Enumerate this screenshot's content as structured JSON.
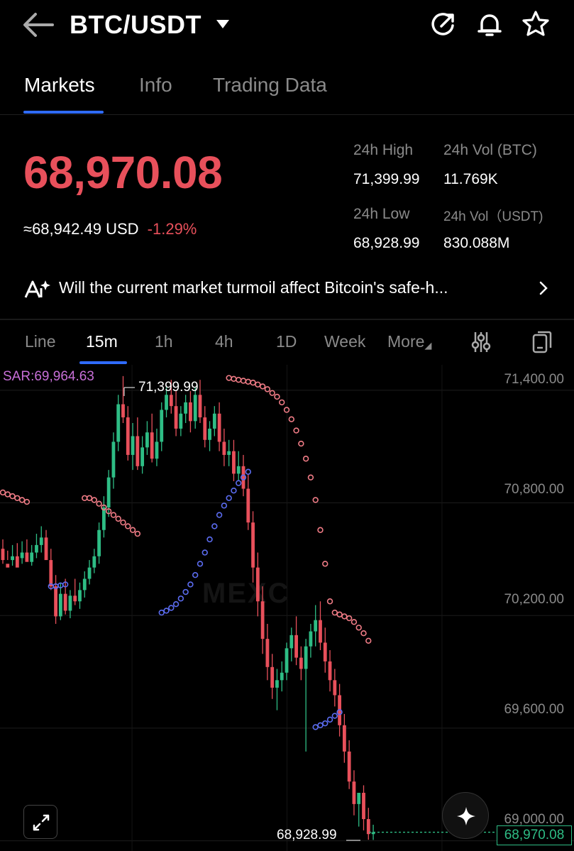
{
  "header": {
    "pair": "BTC/USDT",
    "icons": [
      "back-arrow-icon",
      "caret-down-icon",
      "share-icon",
      "bell-icon",
      "star-icon"
    ]
  },
  "tabs": [
    {
      "label": "Markets",
      "active": true
    },
    {
      "label": "Info",
      "active": false
    },
    {
      "label": "Trading Data",
      "active": false
    }
  ],
  "ticker": {
    "last_price": "68,970.08",
    "usd_price": "≈68,942.49",
    "usd_unit": "USD",
    "change_pct": "-1.29%",
    "high_label": "24h High",
    "high_value": "71,399.99",
    "vol_btc_label": "24h Vol (BTC)",
    "vol_btc_value": "11.769K",
    "low_label": "24h Low",
    "low_value": "68,928.99",
    "vol_usdt_label": "24h Vol（USDT)",
    "vol_usdt_value": "830.088M",
    "up_color": "#2ebd85",
    "down_color": "#e8505b"
  },
  "news": {
    "text": "Will the current market turmoil affect Bitcoin's safe-h..."
  },
  "timeframes": [
    {
      "label": "Line",
      "active": false
    },
    {
      "label": "15m",
      "active": true
    },
    {
      "label": "1h",
      "active": false
    },
    {
      "label": "4h",
      "active": false
    },
    {
      "label": "1D",
      "active": false
    },
    {
      "label": "Week",
      "active": false
    },
    {
      "label": "More",
      "active": false
    }
  ],
  "chart_data": {
    "type": "candlestick",
    "indicator_label": "SAR:69,964.63",
    "y_ticks": [
      "71,400.00",
      "70,800.00",
      "70,200.00",
      "69,600.00",
      "69,000.00"
    ],
    "y_tick_values": [
      71400,
      70800,
      70200,
      69600,
      69000
    ],
    "ylim": [
      68870,
      71460
    ],
    "high_marker": "71,399.99",
    "low_marker": "68,928.99",
    "last_price_tag": "68,970.08",
    "watermark": "MEXC",
    "candles": [
      [
        70480,
        70530,
        70420,
        70400
      ],
      [
        70400,
        70470,
        70380,
        70420
      ],
      [
        70420,
        70500,
        70440,
        70390
      ],
      [
        70440,
        70510,
        70380,
        70430
      ],
      [
        70430,
        70520,
        70460,
        70400
      ],
      [
        70460,
        70530,
        70410,
        70450
      ],
      [
        70410,
        70500,
        70460,
        70390
      ],
      [
        70460,
        70560,
        70500,
        70430
      ],
      [
        70500,
        70600,
        70540,
        70460
      ],
      [
        70540,
        70580,
        70420,
        70480
      ],
      [
        70420,
        70480,
        70280,
        70260
      ],
      [
        70280,
        70340,
        70120,
        70080
      ],
      [
        70120,
        70300,
        70240,
        70100
      ],
      [
        70240,
        70320,
        70150,
        70130
      ],
      [
        70150,
        70260,
        70230,
        70110
      ],
      [
        70230,
        70320,
        70200,
        70180
      ],
      [
        70200,
        70300,
        70260,
        70160
      ],
      [
        70260,
        70360,
        70320,
        70220
      ],
      [
        70320,
        70420,
        70380,
        70290
      ],
      [
        70380,
        70480,
        70440,
        70350
      ],
      [
        70440,
        70620,
        70580,
        70400
      ],
      [
        70580,
        70760,
        70700,
        70540
      ],
      [
        70700,
        70900,
        70860,
        70650
      ],
      [
        70860,
        71100,
        71050,
        70800
      ],
      [
        71050,
        71300,
        71250,
        71000
      ],
      [
        71250,
        71400,
        71180,
        71150
      ],
      [
        71180,
        71240,
        70980,
        70950
      ],
      [
        70980,
        71150,
        71080,
        70900
      ],
      [
        71080,
        71180,
        70920,
        70900
      ],
      [
        70920,
        71080,
        71020,
        70880
      ],
      [
        71020,
        71160,
        71100,
        70980
      ],
      [
        71100,
        71200,
        70960,
        70940
      ],
      [
        70960,
        71120,
        71050,
        70920
      ],
      [
        71050,
        71260,
        71220,
        71000
      ],
      [
        71220,
        71340,
        71300,
        71180
      ],
      [
        71300,
        71380,
        71240,
        71200
      ],
      [
        71240,
        71320,
        71120,
        71080
      ],
      [
        71120,
        71240,
        71200,
        71080
      ],
      [
        71200,
        71300,
        71260,
        71150
      ],
      [
        71260,
        71320,
        71160,
        71100
      ],
      [
        71160,
        71340,
        71300,
        71120
      ],
      [
        71300,
        71380,
        71180,
        71150
      ],
      [
        71180,
        71240,
        71060,
        71020
      ],
      [
        71060,
        71160,
        71120,
        71000
      ],
      [
        71120,
        71240,
        71200,
        71080
      ],
      [
        71200,
        71260,
        71050,
        71000
      ],
      [
        71050,
        71120,
        70980,
        70920
      ],
      [
        70980,
        71060,
        71000,
        70920
      ],
      [
        71000,
        71060,
        70880,
        70840
      ],
      [
        70880,
        71000,
        70920,
        70840
      ],
      [
        70920,
        70980,
        70800,
        70760
      ],
      [
        70800,
        70880,
        70620,
        70580
      ],
      [
        70620,
        70680,
        70380,
        70300
      ],
      [
        70380,
        70460,
        70200,
        70120
      ],
      [
        70200,
        70280,
        70000,
        69920
      ],
      [
        70000,
        70080,
        69850,
        69780
      ],
      [
        69850,
        69920,
        69740,
        69680
      ],
      [
        69740,
        69840,
        69780,
        69620
      ],
      [
        69780,
        69880,
        69820,
        69720
      ],
      [
        69820,
        69980,
        69950,
        69780
      ],
      [
        69950,
        70060,
        70020,
        69880
      ],
      [
        70020,
        70120,
        69900,
        69860
      ],
      [
        69900,
        69960,
        69840,
        69780
      ],
      [
        69840,
        70000,
        69960,
        69400
      ],
      [
        69960,
        70080,
        70040,
        69900
      ],
      [
        70040,
        70180,
        70100,
        69960
      ],
      [
        70100,
        70200,
        69980,
        69940
      ],
      [
        69980,
        70060,
        69880,
        69820
      ],
      [
        69880,
        69940,
        69780,
        69720
      ],
      [
        69780,
        69840,
        69700,
        69640
      ],
      [
        69700,
        69760,
        69540,
        69480
      ],
      [
        69540,
        69600,
        69400,
        69340
      ],
      [
        69400,
        69460,
        69240,
        69200
      ],
      [
        69240,
        69300,
        69120,
        69060
      ],
      [
        69120,
        69180,
        69180,
        69000
      ],
      [
        69180,
        69220,
        69040,
        68980
      ],
      [
        69040,
        69100,
        68960,
        68930
      ],
      [
        68960,
        69010,
        68970,
        68929
      ]
    ],
    "sar_red": [
      [
        0,
        70780
      ],
      [
        1,
        70770
      ],
      [
        2,
        70760
      ],
      [
        3,
        70750
      ],
      [
        4,
        70740
      ],
      [
        5,
        70730
      ],
      [
        17,
        70750
      ],
      [
        18,
        70750
      ],
      [
        19,
        70740
      ],
      [
        20,
        70720
      ],
      [
        21,
        70700
      ],
      [
        22,
        70680
      ],
      [
        23,
        70660
      ],
      [
        24,
        70640
      ],
      [
        25,
        70620
      ],
      [
        26,
        70600
      ],
      [
        27,
        70580
      ],
      [
        28,
        70560
      ],
      [
        47,
        71390
      ],
      [
        48,
        71385
      ],
      [
        49,
        71380
      ],
      [
        50,
        71375
      ],
      [
        51,
        71370
      ],
      [
        52,
        71365
      ],
      [
        53,
        71355
      ],
      [
        54,
        71345
      ],
      [
        55,
        71330
      ],
      [
        56,
        71310
      ],
      [
        57,
        71290
      ],
      [
        58,
        71260
      ],
      [
        59,
        71220
      ],
      [
        60,
        71170
      ],
      [
        61,
        71110
      ],
      [
        62,
        71040
      ],
      [
        63,
        70960
      ],
      [
        64,
        70860
      ],
      [
        65,
        70740
      ],
      [
        66,
        70580
      ],
      [
        67,
        70400
      ],
      [
        68,
        70200
      ],
      [
        69,
        70140
      ],
      [
        70,
        70130
      ],
      [
        71,
        70120
      ],
      [
        72,
        70110
      ],
      [
        73,
        70090
      ],
      [
        74,
        70060
      ],
      [
        75,
        70030
      ],
      [
        76,
        69990
      ]
    ],
    "sar_blue": [
      [
        10,
        70280
      ],
      [
        11,
        70280
      ],
      [
        12,
        70285
      ],
      [
        13,
        70290
      ],
      [
        33,
        70140
      ],
      [
        34,
        70150
      ],
      [
        35,
        70165
      ],
      [
        36,
        70185
      ],
      [
        37,
        70215
      ],
      [
        38,
        70250
      ],
      [
        39,
        70290
      ],
      [
        40,
        70340
      ],
      [
        41,
        70400
      ],
      [
        42,
        70460
      ],
      [
        43,
        70530
      ],
      [
        44,
        70600
      ],
      [
        45,
        70660
      ],
      [
        46,
        70710
      ],
      [
        47,
        70750
      ],
      [
        48,
        70790
      ],
      [
        49,
        70830
      ],
      [
        50,
        70860
      ],
      [
        51,
        70890
      ],
      [
        65,
        69530
      ],
      [
        66,
        69540
      ],
      [
        67,
        69550
      ],
      [
        68,
        69570
      ],
      [
        69,
        69590
      ],
      [
        70,
        69610
      ]
    ],
    "grid": true,
    "legend": "none"
  }
}
